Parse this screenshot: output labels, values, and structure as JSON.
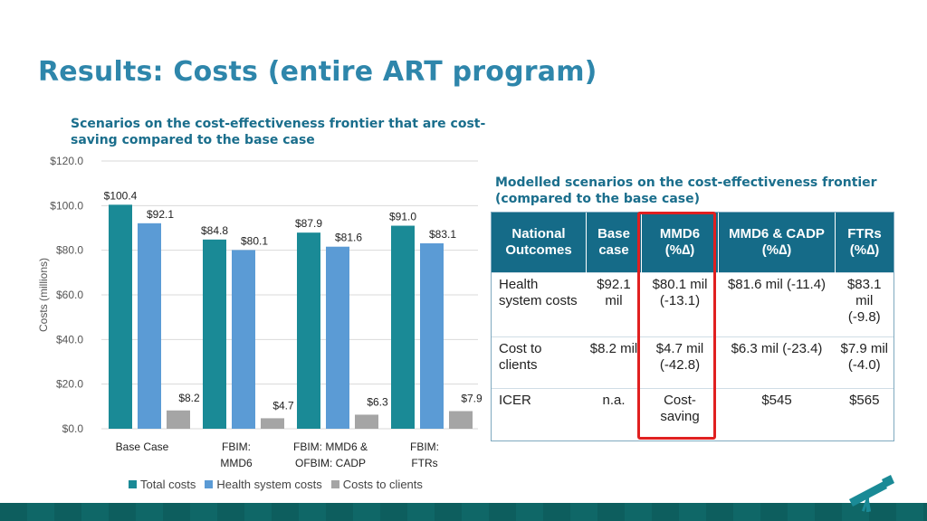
{
  "title": "Results: Costs (entire ART program)",
  "chart_subtitle": "Scenarios on the cost-effectiveness frontier that are cost-saving compared to the base case",
  "chart_data": {
    "type": "bar",
    "ylabel": "Costs (millions)",
    "ylim": [
      0,
      120
    ],
    "yticks": [
      0,
      20,
      40,
      60,
      80,
      100,
      120
    ],
    "ytick_labels": [
      "$0.0",
      "$20.0",
      "$40.0",
      "$60.0",
      "$80.0",
      "$100.0",
      "$120.0"
    ],
    "categories": [
      [
        "Base Case"
      ],
      [
        "FBIM:",
        "MMD6"
      ],
      [
        "FBIM: MMD6 &",
        "OFBIM: CADP"
      ],
      [
        "FBIM:",
        "FTRs"
      ]
    ],
    "series": [
      {
        "name": "Total costs",
        "color": "#1a8a96",
        "values": [
          100.4,
          84.8,
          87.9,
          91.0
        ],
        "labels": [
          "$100.4",
          "$84.8",
          "$87.9",
          "$91.0"
        ]
      },
      {
        "name": "Health system costs",
        "color": "#5b9bd5",
        "values": [
          92.1,
          80.1,
          81.6,
          83.1
        ],
        "labels": [
          "$92.1",
          "$80.1",
          "$81.6",
          "$83.1"
        ]
      },
      {
        "name": "Costs to clients",
        "color": "#a5a5a5",
        "values": [
          8.2,
          4.7,
          6.3,
          7.9
        ],
        "labels": [
          "$8.2",
          "$4.7",
          "$6.3",
          "$7.9"
        ]
      }
    ],
    "grid": true,
    "legend": "bottom"
  },
  "table": {
    "title": "Modelled scenarios on the cost-effectiveness frontier (compared to the base case)",
    "headers": [
      "National Outcomes",
      "Base case",
      "MMD6 (%∆)",
      "MMD6 & CADP (%∆)",
      "FTRs (%∆)"
    ],
    "rows": [
      [
        "Health system costs",
        "$92.1 mil",
        "$80.1 mil (-13.1)",
        "$81.6 mil (-11.4)",
        "$83.1 mil (-9.8)"
      ],
      [
        "Cost to clients",
        "$8.2 mil",
        "$4.7 mil (-42.8)",
        "$6.3 mil (-23.4)",
        "$7.9 mil (-4.0)"
      ],
      [
        "ICER",
        "n.a.",
        "Cost-saving",
        "$545",
        "$565"
      ]
    ],
    "highlight_column": 2,
    "header_color": "#156b88",
    "highlight_color": "#e02020"
  },
  "logo": "telescope-icon"
}
